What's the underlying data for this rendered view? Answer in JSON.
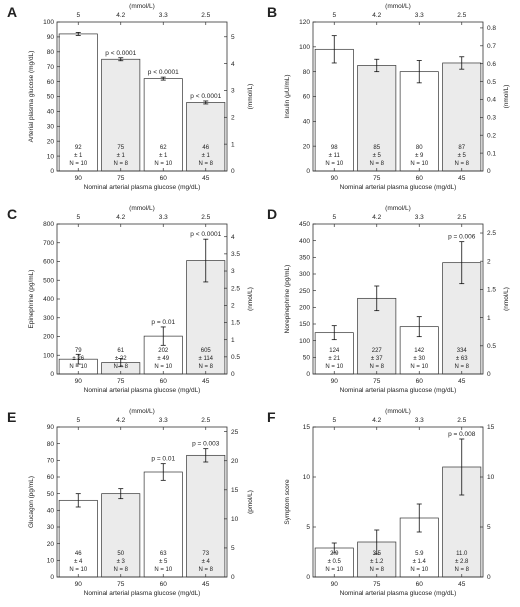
{
  "chart_data": [
    {
      "type": "bar",
      "panel_label": "A",
      "categories": [
        "90",
        "75",
        "60",
        "45"
      ],
      "top_axis_ticks": [
        "5",
        "4.2",
        "3.3",
        "2.5"
      ],
      "top_axis_label": "(mmol/L)",
      "xlabel": "Nominal arterial plasma glucose (mg/dL)",
      "ylabel": "Arterial plasma glucose (mg/dL)",
      "ylim": [
        0,
        100
      ],
      "yticks": [
        0,
        10,
        20,
        30,
        40,
        50,
        60,
        70,
        80,
        90,
        100
      ],
      "right_ylabel": "(mmol/L)",
      "right_ylim": [
        0,
        5.55
      ],
      "right_yticks": [
        0,
        1,
        2,
        3,
        4,
        5
      ],
      "values": [
        92,
        75,
        62,
        46
      ],
      "errors": [
        1,
        1,
        1,
        1
      ],
      "p_values": [
        "",
        "p < 0.0001",
        "p < 0.0001",
        "p < 0.0001"
      ],
      "label_lines": [
        [
          "92",
          "± 1",
          "N = 10"
        ],
        [
          "75",
          "± 1",
          "N = 8"
        ],
        [
          "62",
          "± 1",
          "N = 10"
        ],
        [
          "46",
          "± 1",
          "N = 8"
        ]
      ],
      "bar_fills": [
        "#ffffff",
        "#ebebeb",
        "#ffffff",
        "#ebebeb"
      ]
    },
    {
      "type": "bar",
      "panel_label": "B",
      "categories": [
        "90",
        "75",
        "60",
        "45"
      ],
      "top_axis_ticks": [
        "5",
        "4.2",
        "3.3",
        "2.5"
      ],
      "top_axis_label": "(mmol/L)",
      "xlabel": "Nominal arterial plasma glucose (mg/dL)",
      "ylabel": "Insulin (μU/mL)",
      "ylim": [
        0,
        120
      ],
      "yticks": [
        0,
        20,
        40,
        60,
        80,
        100,
        120
      ],
      "right_ylabel": "(nmol/L)",
      "right_ylim": [
        0,
        0.833
      ],
      "right_yticks": [
        0,
        0.1,
        0.2,
        0.3,
        0.4,
        0.5,
        0.6,
        0.7,
        0.8
      ],
      "values": [
        98,
        85,
        80,
        87
      ],
      "errors": [
        11,
        5,
        9,
        5
      ],
      "p_values": [
        "",
        "",
        "",
        ""
      ],
      "label_lines": [
        [
          "98",
          "± 11",
          "N = 10"
        ],
        [
          "85",
          "± 5",
          "N = 8"
        ],
        [
          "80",
          "± 9",
          "N = 10"
        ],
        [
          "87",
          "± 5",
          "N = 8"
        ]
      ],
      "bar_fills": [
        "#ffffff",
        "#ebebeb",
        "#ffffff",
        "#ebebeb"
      ]
    },
    {
      "type": "bar",
      "panel_label": "C",
      "categories": [
        "90",
        "75",
        "60",
        "45"
      ],
      "top_axis_ticks": [
        "5",
        "4.2",
        "3.3",
        "2.5"
      ],
      "top_axis_label": "(mmol/L)",
      "xlabel": "Nominal arterial plasma glucose (mg/dL)",
      "ylabel": "Epinephrine (pg/mL)",
      "ylim": [
        0,
        800
      ],
      "yticks": [
        0,
        100,
        200,
        300,
        400,
        500,
        600,
        700,
        800
      ],
      "right_ylabel": "(nmol/L)",
      "right_ylim": [
        0,
        4.37
      ],
      "right_yticks": [
        0,
        0.5,
        1,
        1.5,
        2,
        2.5,
        3,
        3.5,
        4
      ],
      "values": [
        79,
        61,
        202,
        605
      ],
      "errors": [
        26,
        22,
        49,
        114
      ],
      "p_values": [
        "",
        "",
        "p = 0.01",
        "p < 0.0001"
      ],
      "label_lines": [
        [
          "79",
          "± 26",
          "N = 10"
        ],
        [
          "61",
          "± 22",
          "N = 8"
        ],
        [
          "202",
          "± 49",
          "N = 10"
        ],
        [
          "605",
          "± 114",
          "N = 8"
        ]
      ],
      "bar_fills": [
        "#ffffff",
        "#ebebeb",
        "#ffffff",
        "#ebebeb"
      ]
    },
    {
      "type": "bar",
      "panel_label": "D",
      "categories": [
        "90",
        "75",
        "60",
        "45"
      ],
      "top_axis_ticks": [
        "5",
        "4.2",
        "3.3",
        "2.5"
      ],
      "top_axis_label": "(mmol/L)",
      "xlabel": "Nominal arterial plasma glucose (mg/dL)",
      "ylabel": "Norepinephrine (pg/mL)",
      "ylim": [
        0,
        450
      ],
      "yticks": [
        0,
        50,
        100,
        150,
        200,
        250,
        300,
        350,
        400,
        450
      ],
      "right_ylabel": "(nmol/L)",
      "right_ylim": [
        0,
        2.66
      ],
      "right_yticks": [
        0,
        0.5,
        1,
        1.5,
        2,
        2.5
      ],
      "values": [
        124,
        227,
        142,
        334
      ],
      "errors": [
        21,
        37,
        30,
        63
      ],
      "p_values": [
        "",
        "",
        "",
        "p = 0.006"
      ],
      "label_lines": [
        [
          "124",
          "± 21",
          "N = 10"
        ],
        [
          "227",
          "± 37",
          "N = 8"
        ],
        [
          "142",
          "± 30",
          "N = 10"
        ],
        [
          "334",
          "± 63",
          "N = 8"
        ]
      ],
      "bar_fills": [
        "#ffffff",
        "#ebebeb",
        "#ffffff",
        "#ebebeb"
      ]
    },
    {
      "type": "bar",
      "panel_label": "E",
      "categories": [
        "90",
        "75",
        "60",
        "45"
      ],
      "top_axis_ticks": [
        "5",
        "4.2",
        "3.3",
        "2.5"
      ],
      "top_axis_label": "(mmol/L)",
      "xlabel": "Nominal arterial plasma glucose (mg/dL)",
      "ylabel": "Glucagon (pg/mL)",
      "ylim": [
        0,
        90
      ],
      "yticks": [
        0,
        10,
        20,
        30,
        40,
        50,
        60,
        70,
        80,
        90
      ],
      "right_ylabel": "(pmol/L)",
      "right_ylim": [
        0,
        25.8
      ],
      "right_yticks": [
        0,
        5,
        10,
        15,
        20,
        25
      ],
      "values": [
        46,
        50,
        63,
        73
      ],
      "errors": [
        4,
        3,
        5,
        4
      ],
      "p_values": [
        "",
        "",
        "p = 0.01",
        "p = 0.003"
      ],
      "label_lines": [
        [
          "46",
          "± 4",
          "N = 10"
        ],
        [
          "50",
          "± 3",
          "N = 8"
        ],
        [
          "63",
          "± 5",
          "N = 10"
        ],
        [
          "73",
          "± 4",
          "N = 8"
        ]
      ],
      "bar_fills": [
        "#ffffff",
        "#ebebeb",
        "#ffffff",
        "#ebebeb"
      ]
    },
    {
      "type": "bar",
      "panel_label": "F",
      "categories": [
        "90",
        "75",
        "60",
        "45"
      ],
      "top_axis_ticks": [
        "5",
        "4.2",
        "3.3",
        "2.5"
      ],
      "top_axis_label": "(mmol/L)",
      "xlabel": "Nominal arterial plasma glucose (mg/dL)",
      "ylabel": "Symptom score",
      "ylim": [
        0,
        15
      ],
      "yticks": [
        0,
        5,
        10,
        15
      ],
      "right_ylabel": "",
      "right_ylim": [
        0,
        15
      ],
      "right_yticks": [
        0,
        5,
        10,
        15
      ],
      "values": [
        2.9,
        3.5,
        5.9,
        11.0
      ],
      "errors": [
        0.5,
        1.2,
        1.4,
        2.8
      ],
      "p_values": [
        "",
        "",
        "",
        "p = 0.008"
      ],
      "label_lines": [
        [
          "2.9",
          "± 0.5",
          "N = 10"
        ],
        [
          "3.5",
          "± 1.2",
          "N = 8"
        ],
        [
          "5.9",
          "± 1.4",
          "N = 10"
        ],
        [
          "11.0",
          "± 2.8",
          "N = 8"
        ]
      ],
      "bar_fills": [
        "#ffffff",
        "#ebebeb",
        "#ffffff",
        "#ebebeb"
      ]
    }
  ]
}
